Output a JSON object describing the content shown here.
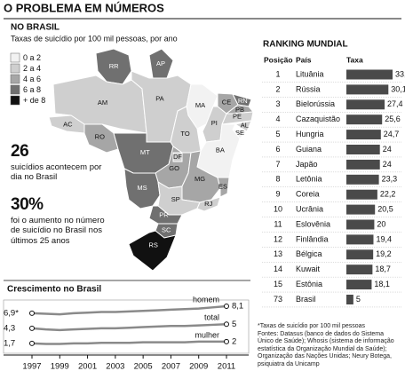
{
  "title": "O PROBLEMA EM NÚMEROS",
  "chart_data": [
    {
      "type": "map",
      "title": "NO BRASIL",
      "subtitle": "Taxas de suicídio por 100 mil pessoas, por ano",
      "legend": {
        "labels": [
          "0 a 2",
          "2 a 4",
          "4 a 6",
          "6 a 8",
          "+ de 8"
        ],
        "colors": [
          "#f2f2f2",
          "#cfcfcf",
          "#a6a6a6",
          "#707070",
          "#111111"
        ]
      },
      "states": [
        {
          "label": "RR",
          "color": "#707070"
        },
        {
          "label": "AP",
          "color": "#707070"
        },
        {
          "label": "AM",
          "color": "#cfcfcf"
        },
        {
          "label": "PA",
          "color": "#cfcfcf"
        },
        {
          "label": "MA",
          "color": "#f2f2f2"
        },
        {
          "label": "CE",
          "color": "#a6a6a6"
        },
        {
          "label": "RN",
          "color": "#707070"
        },
        {
          "label": "PB",
          "color": "#a6a6a6"
        },
        {
          "label": "PE",
          "color": "#cfcfcf"
        },
        {
          "label": "AL",
          "color": "#cfcfcf"
        },
        {
          "label": "SE",
          "color": "#f2f2f2"
        },
        {
          "label": "PI",
          "color": "#cfcfcf"
        },
        {
          "label": "BA",
          "color": "#f2f2f2"
        },
        {
          "label": "TO",
          "color": "#cfcfcf"
        },
        {
          "label": "AC",
          "color": "#cfcfcf"
        },
        {
          "label": "RO",
          "color": "#a6a6a6"
        },
        {
          "label": "MT",
          "color": "#707070"
        },
        {
          "label": "GO",
          "color": "#a6a6a6"
        },
        {
          "label": "DF",
          "color": "#cfcfcf"
        },
        {
          "label": "MG",
          "color": "#a6a6a6"
        },
        {
          "label": "ES",
          "color": "#a6a6a6"
        },
        {
          "label": "MS",
          "color": "#707070"
        },
        {
          "label": "SP",
          "color": "#cfcfcf"
        },
        {
          "label": "RJ",
          "color": "#cfcfcf"
        },
        {
          "label": "PR",
          "color": "#707070"
        },
        {
          "label": "SC",
          "color": "#707070"
        },
        {
          "label": "RS",
          "color": "#111111"
        }
      ]
    },
    {
      "type": "bar",
      "title": "RANKING MUNDIAL",
      "columns": [
        "Posição",
        "País",
        "Taxa"
      ],
      "positions": [
        1,
        2,
        3,
        4,
        5,
        6,
        7,
        8,
        9,
        10,
        11,
        12,
        13,
        14,
        15,
        73
      ],
      "categories": [
        "Lituânia",
        "Rússia",
        "Bielorússia",
        "Cazaquistão",
        "Hungria",
        "Guiana",
        "Japão",
        "Letônia",
        "Coreia",
        "Ucrânia",
        "Eslovênia",
        "Finlândia",
        "Bélgica",
        "Kuwait",
        "Estônia",
        "Brasil"
      ],
      "values": [
        33.1,
        30.1,
        27.4,
        25.6,
        24.7,
        24,
        24,
        23.3,
        22.2,
        20.5,
        20,
        19.4,
        19.2,
        18.7,
        18.1,
        5
      ],
      "value_labels": [
        "33,1*",
        "30,1",
        "27,4",
        "25,6",
        "24,7",
        "24",
        "24",
        "23,3",
        "22,2",
        "20,5",
        "20",
        "19,4",
        "19,2",
        "18,7",
        "18,1",
        "5"
      ],
      "color": "#4a4a4a"
    },
    {
      "type": "line",
      "title": "Crescimento no Brasil",
      "x": [
        1997,
        1998,
        1999,
        2000,
        2001,
        2002,
        2003,
        2004,
        2005,
        2006,
        2007,
        2008,
        2009,
        2010,
        2011
      ],
      "xlim": [
        1997,
        2011
      ],
      "xticks": [
        1997,
        1999,
        2001,
        2003,
        2005,
        2007,
        2009,
        2011
      ],
      "series": [
        {
          "name": "homem",
          "color": "#8a8a8a",
          "values": [
            6.9,
            6.8,
            6.7,
            6.9,
            7.0,
            7.1,
            7.1,
            7.2,
            7.3,
            7.4,
            7.5,
            7.6,
            7.7,
            7.9,
            8.1
          ],
          "value_labels": [
            "6,9*",
            null,
            null,
            null,
            null,
            null,
            null,
            null,
            null,
            null,
            null,
            null,
            null,
            null,
            "8,1"
          ]
        },
        {
          "name": "total",
          "color": "#8a8a8a",
          "values": [
            4.3,
            4.1,
            4.0,
            4.1,
            4.2,
            4.3,
            4.3,
            4.4,
            4.5,
            4.6,
            4.7,
            4.7,
            4.8,
            4.9,
            5
          ],
          "value_labels": [
            "4,3",
            null,
            null,
            null,
            null,
            null,
            null,
            null,
            null,
            null,
            null,
            null,
            null,
            null,
            "5"
          ]
        },
        {
          "name": "mulher",
          "color": "#8a8a8a",
          "values": [
            1.7,
            1.6,
            1.6,
            1.7,
            1.7,
            1.8,
            1.8,
            1.8,
            1.9,
            1.9,
            1.9,
            1.9,
            2.0,
            2.0,
            2
          ],
          "value_labels": [
            "1,7",
            null,
            null,
            null,
            null,
            null,
            null,
            null,
            null,
            null,
            null,
            null,
            null,
            null,
            "2"
          ]
        }
      ]
    }
  ],
  "stats": [
    {
      "figure": "26",
      "text": "suicídios acontecem por dia no Brasil"
    },
    {
      "figure": "30%",
      "text": "foi o aumento no número de suicídio no Brasil nos últimos 25 anos"
    }
  ],
  "notes": [
    "*Taxas de suicídio por 100 mil pessoas",
    "Fontes: Datasus (banco de dados do Sistema Único de Saúde); Whosis (sistema de informação estatística da Organização Mundial da Saúde); Organização das Nações Unidas; Neury Botega, psiquiatra da Unicamp"
  ]
}
